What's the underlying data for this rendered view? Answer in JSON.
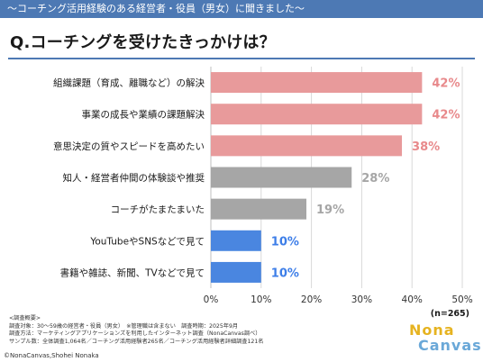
{
  "header": {
    "banner_text": "〜コーチング活用経験のある経営者・役員（男女）に聞きました〜"
  },
  "question": "Q.コーチングを受けたきっかけは？",
  "chart_data": {
    "type": "bar",
    "orientation": "horizontal",
    "categories": [
      "組織課題（育成、離職など）の解決",
      "事業の成長や業績の課題解決",
      "意思決定の質やスピードを高めたい",
      "知人・経営者仲間の体験談や推奨",
      "コーチがたまたまいた",
      "YouTubeやSNSなどで見て",
      "書籍や雑誌、新聞、TVなどで見て"
    ],
    "values": [
      42,
      42,
      38,
      28,
      19,
      10,
      10
    ],
    "value_labels": [
      "42%",
      "42%",
      "38%",
      "28%",
      "19%",
      "10%",
      "10%"
    ],
    "bar_colors": [
      "#e89a9b",
      "#e89a9b",
      "#e89a9b",
      "#a6a6a6",
      "#a6a6a6",
      "#4a86e0",
      "#4a86e0"
    ],
    "label_colors": [
      "#e8898b",
      "#e8898b",
      "#e8898b",
      "#a6a6a6",
      "#a6a6a6",
      "#3d7ee8",
      "#3d7ee8"
    ],
    "xlim": [
      0,
      50
    ],
    "xticks": [
      "0%",
      "10%",
      "20%",
      "30%",
      "40%",
      "50%"
    ],
    "sample_note": "(n=265)",
    "grid": true
  },
  "notes": {
    "lines": [
      "<調査概要>",
      "調査対象：30〜59歳の経営者・役員（男女）　※管理職は含まない　調査時期：2025年9月",
      "調査方法：マーケティングアプリケーションズを利用したインターネット調査（NonaCanvas調べ）",
      "サンプル数：全体調査1,064名／コーチング活用経験者265名／コーチング活用経験者詳細調査121名"
    ]
  },
  "copyright": "©NonaCanvas,Shohei Nonaka",
  "logo": {
    "line1": "Nona",
    "line2": "Canvas"
  },
  "colors": {
    "banner": "#4d79b4",
    "accent_line": "#4d79b4"
  }
}
